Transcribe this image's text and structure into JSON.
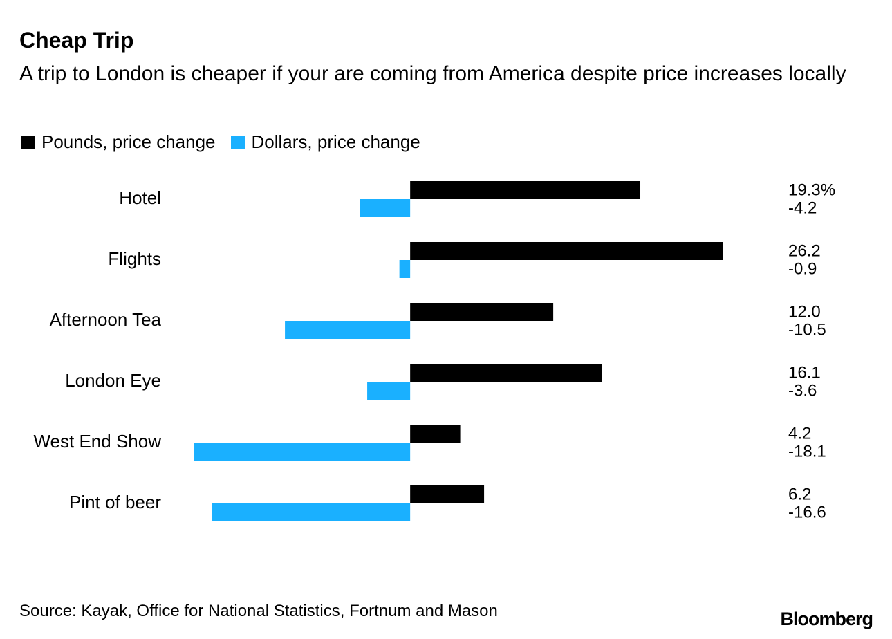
{
  "chart_data": {
    "type": "hbar",
    "title": "Cheap Trip",
    "subtitle": "A trip to London is cheaper if your are coming from America despite price increases locally",
    "source": "Source: Kayak, Office for National Statistics, Fortnum and Mason",
    "brand": "Bloomberg",
    "categories": [
      "Hotel",
      "Flights",
      "Afternoon Tea",
      "London Eye",
      "West End Show",
      "Pint of beer"
    ],
    "series": [
      {
        "name": "Pounds, price change",
        "color": "#000000",
        "values": [
          19.3,
          26.2,
          12.0,
          16.1,
          4.2,
          6.2
        ],
        "value_labels": [
          "19.3%",
          "26.2",
          "12.0",
          "16.1",
          "4.2",
          "6.2"
        ]
      },
      {
        "name": "Dollars, price change",
        "color": "#1ab0ff",
        "values": [
          -4.2,
          -0.9,
          -10.5,
          -3.6,
          -18.1,
          -16.6
        ],
        "value_labels": [
          "-4.2",
          "-0.9",
          "-10.5",
          "-3.6",
          "-18.1",
          "-16.6"
        ]
      }
    ]
  }
}
